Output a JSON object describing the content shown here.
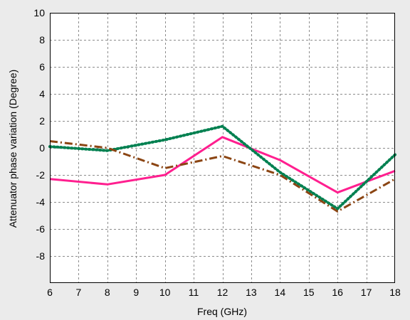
{
  "chart_data": {
    "type": "line",
    "title": "",
    "xlabel": "Freq (GHz)",
    "ylabel": "Attenuator phase variation (Degree)",
    "xlim": [
      6,
      18
    ],
    "ylim": [
      -10,
      10
    ],
    "x_ticks": [
      "6",
      "7",
      "8",
      "9",
      "10",
      "11",
      "12",
      "13",
      "14",
      "15",
      "16",
      "17",
      "18"
    ],
    "y_ticks": [
      "10",
      "8",
      "6",
      "4",
      "2",
      "0",
      "-2",
      "-4",
      "-6",
      "-8"
    ],
    "grid": true,
    "series": [
      {
        "color": "#ff1f8f",
        "style": "solid",
        "points": [
          [
            6,
            -2.3
          ],
          [
            8,
            -2.7
          ],
          [
            10,
            -2.0
          ],
          [
            12,
            0.8
          ],
          [
            14,
            -0.9
          ],
          [
            16,
            -3.3
          ],
          [
            18,
            -1.7
          ]
        ]
      },
      {
        "color": "#008050",
        "style": "dotted",
        "points": [
          [
            6,
            0.1
          ],
          [
            8,
            -0.2
          ],
          [
            10,
            0.6
          ],
          [
            12,
            1.6
          ],
          [
            14,
            -1.8
          ],
          [
            16,
            -4.5
          ],
          [
            18,
            -0.5
          ]
        ]
      },
      {
        "color": "#8b4513",
        "style": "dashdot",
        "points": [
          [
            6,
            0.5
          ],
          [
            8,
            0.0
          ],
          [
            10,
            -1.5
          ],
          [
            12,
            -0.6
          ],
          [
            14,
            -2.0
          ],
          [
            16,
            -4.7
          ],
          [
            18,
            -2.3
          ]
        ]
      }
    ]
  }
}
